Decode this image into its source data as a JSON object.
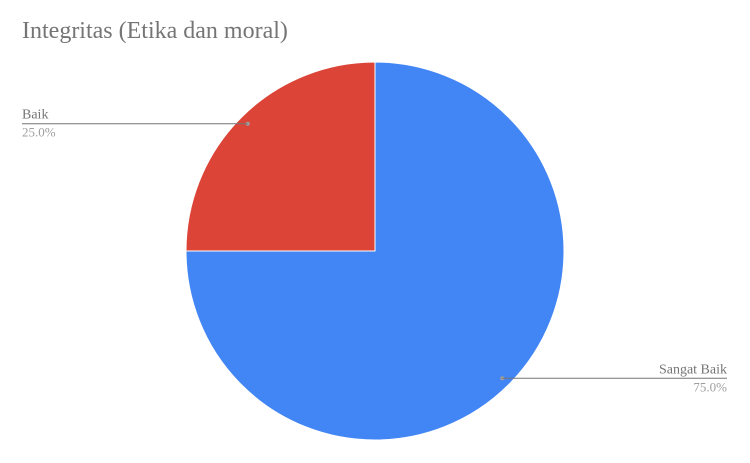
{
  "chart_data": {
    "type": "pie",
    "title": "Integritas (Etika dan moral)",
    "slices": [
      {
        "label": "Baik",
        "value": 25.0,
        "percent_label": "25.0%",
        "color": "#db4437"
      },
      {
        "label": "Sangat Baik",
        "value": 75.0,
        "percent_label": "75.0%",
        "color": "#4285f4"
      }
    ],
    "legend": "none",
    "label_color": "#757575",
    "percent_color": "#9e9e9e"
  }
}
